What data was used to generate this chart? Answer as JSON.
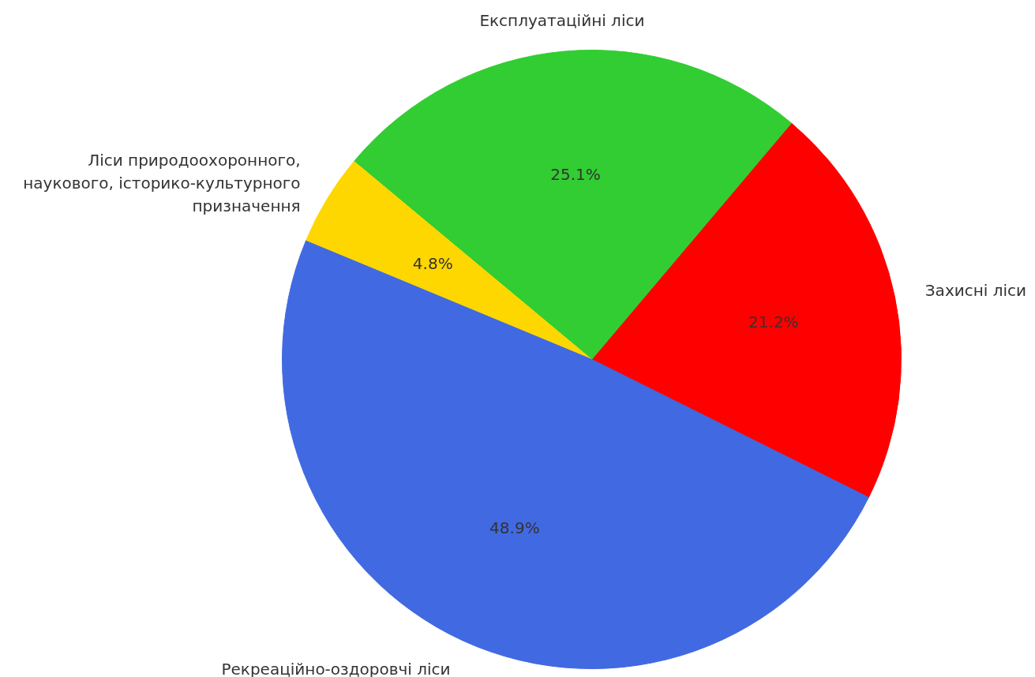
{
  "chart_data": {
    "type": "pie",
    "categories": [
      "Захисні ліси",
      "Експлуатаційні ліси",
      "Ліси природоохоронного,\nнаукового, історико-культурного\nпризначення",
      "Рекреаційно-оздоровчі ліси"
    ],
    "values": [
      21.2,
      25.1,
      4.8,
      48.9
    ],
    "colors": [
      "#ff0000",
      "#32cd32",
      "#ffd700",
      "#4169e1"
    ],
    "value_labels": [
      "21.2%",
      "25.1%",
      "4.8%",
      "48.9%"
    ]
  }
}
